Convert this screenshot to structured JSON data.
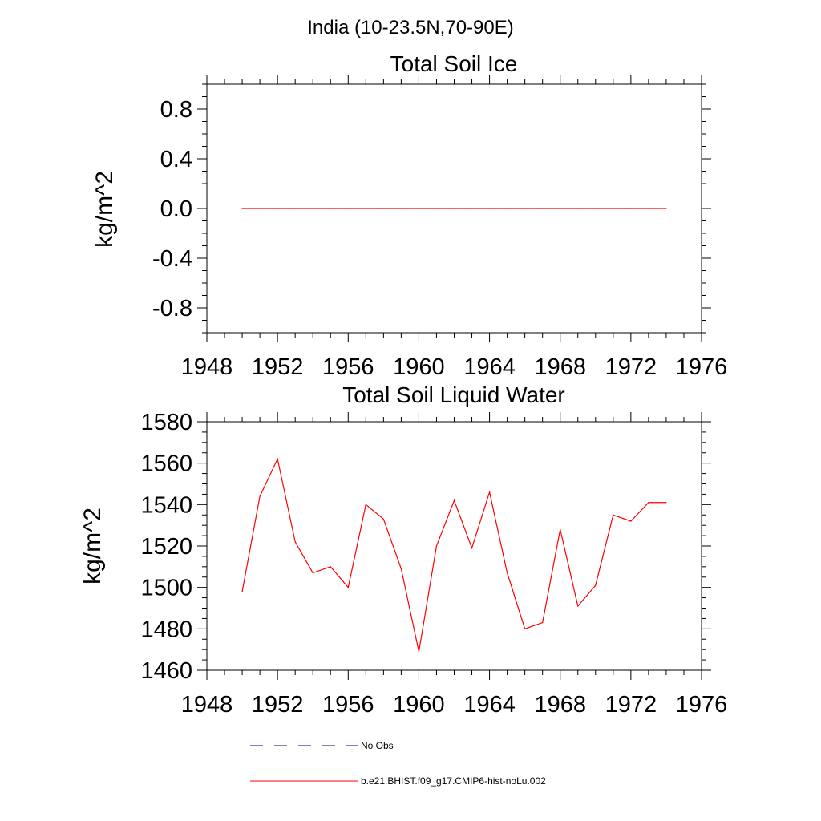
{
  "figure_title": "India (10-23.5N,70-90E)",
  "chart_data": [
    {
      "type": "line",
      "title": "Total Soil Ice",
      "xlabel": "",
      "ylabel": "kg/m^2",
      "xlim": [
        1948,
        1976
      ],
      "ylim": [
        -1.0,
        1.0
      ],
      "x_ticks": [
        1948,
        1952,
        1956,
        1960,
        1964,
        1968,
        1972,
        1976
      ],
      "y_ticks": [
        -0.8,
        -0.4,
        0.0,
        0.4,
        0.8
      ],
      "y_tick_labels": [
        "-0.8",
        "-0.4",
        "0.0",
        "0.4",
        "0.8"
      ],
      "grid": false,
      "series": [
        {
          "name": "b.e21.BHIST.f09_g17.CMIP6-hist-noLu.002",
          "color": "#ff0000",
          "x": [
            1950,
            1951,
            1952,
            1953,
            1954,
            1955,
            1956,
            1957,
            1958,
            1959,
            1960,
            1961,
            1962,
            1963,
            1964,
            1965,
            1966,
            1967,
            1968,
            1969,
            1970,
            1971,
            1972,
            1973,
            1974
          ],
          "values": [
            0,
            0,
            0,
            0,
            0,
            0,
            0,
            0,
            0,
            0,
            0,
            0,
            0,
            0,
            0,
            0,
            0,
            0,
            0,
            0,
            0,
            0,
            0,
            0,
            0
          ]
        }
      ]
    },
    {
      "type": "line",
      "title": "Total Soil Liquid Water",
      "xlabel": "",
      "ylabel": "kg/m^2",
      "xlim": [
        1948,
        1976
      ],
      "ylim": [
        1460,
        1580
      ],
      "x_ticks": [
        1948,
        1952,
        1956,
        1960,
        1964,
        1968,
        1972,
        1976
      ],
      "y_ticks": [
        1460,
        1480,
        1500,
        1520,
        1540,
        1560,
        1580
      ],
      "y_tick_labels": [
        "1460",
        "1480",
        "1500",
        "1520",
        "1540",
        "1560",
        "1580"
      ],
      "grid": false,
      "series": [
        {
          "name": "b.e21.BHIST.f09_g17.CMIP6-hist-noLu.002",
          "color": "#ff0000",
          "x": [
            1950,
            1951,
            1952,
            1953,
            1954,
            1955,
            1956,
            1957,
            1958,
            1959,
            1960,
            1961,
            1962,
            1963,
            1964,
            1965,
            1966,
            1967,
            1968,
            1969,
            1970,
            1971,
            1972,
            1973,
            1974
          ],
          "values": [
            1498,
            1544,
            1562,
            1522,
            1507,
            1510,
            1500,
            1540,
            1533,
            1509,
            1469,
            1520,
            1542,
            1519,
            1546,
            1507,
            1480,
            1483,
            1528,
            1491,
            1501,
            1535,
            1532,
            1541,
            1541
          ]
        }
      ]
    }
  ],
  "legend": [
    {
      "label": "No Obs",
      "style": "dashed",
      "color": "#000080"
    },
    {
      "label": "b.e21.BHIST.f09_g17.CMIP6-hist-noLu.002",
      "style": "solid",
      "color": "#ff0000"
    }
  ]
}
